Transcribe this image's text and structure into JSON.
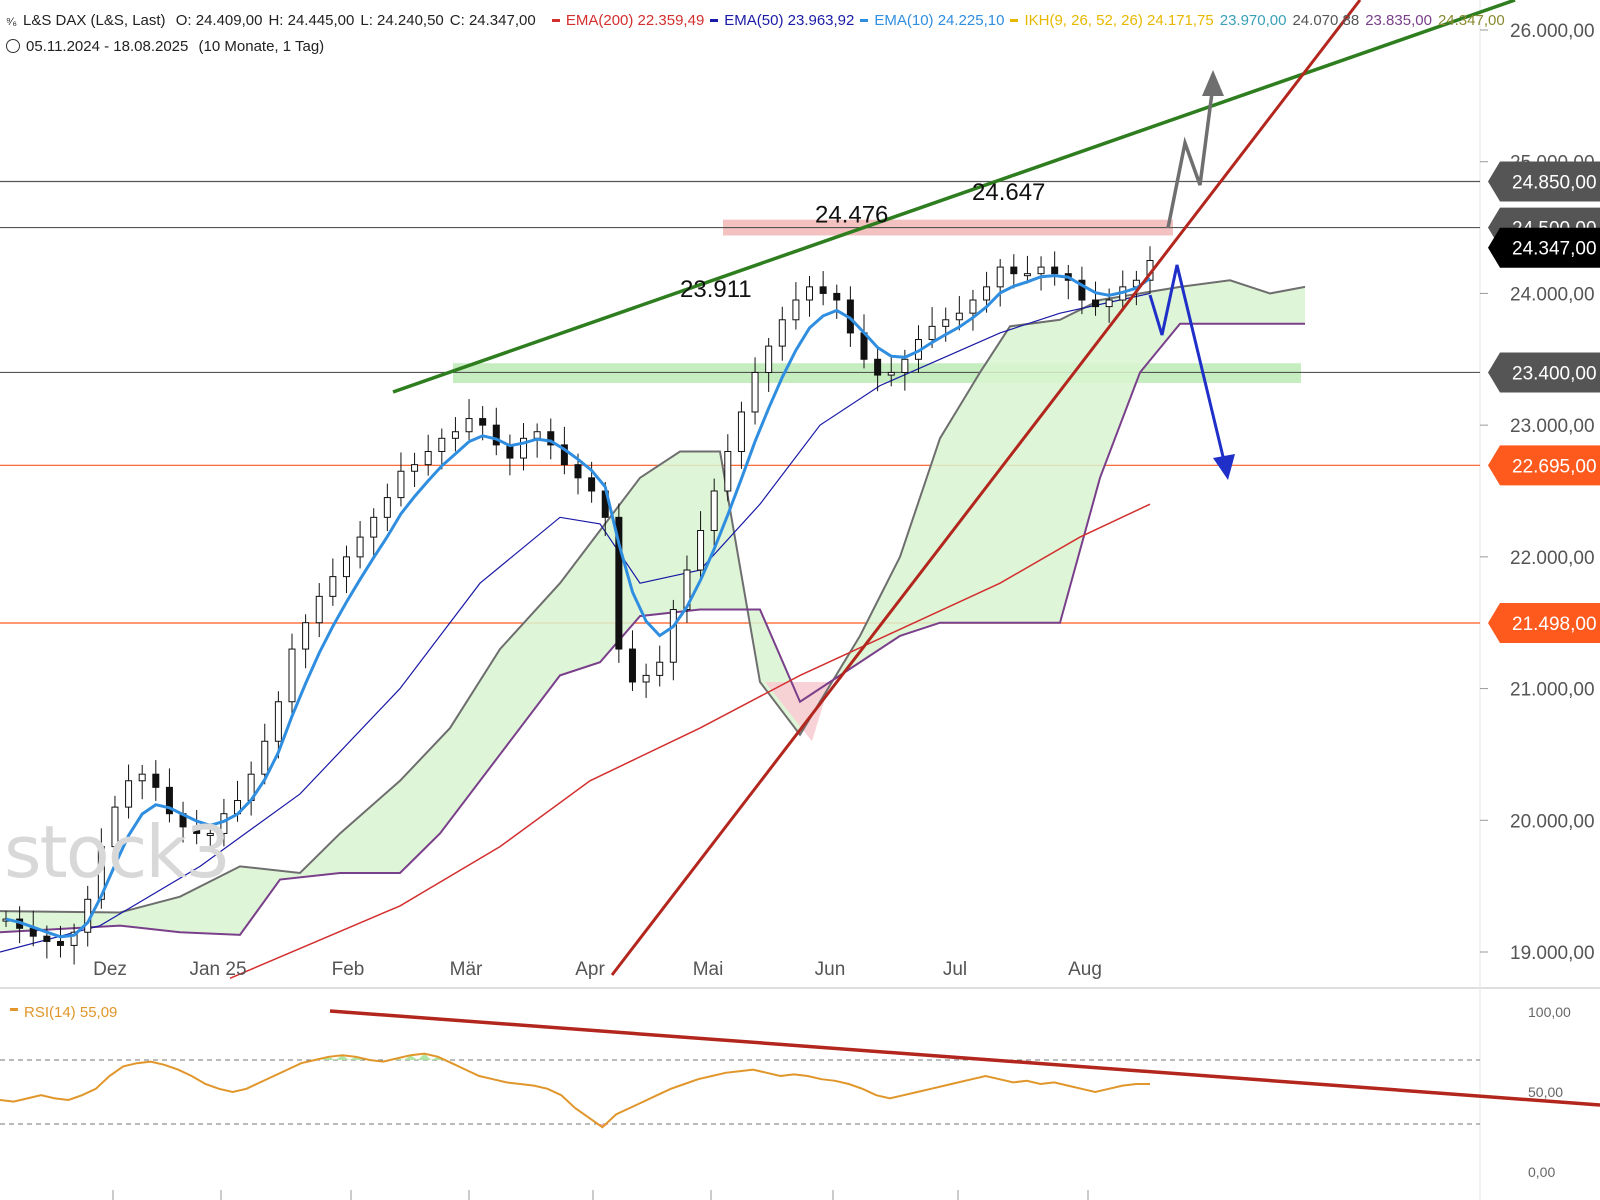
{
  "header": {
    "instrument": "L&S DAX (L&S, Last)",
    "ohlc": [
      {
        "label": "O:",
        "value": "24.409,00"
      },
      {
        "label": "H:",
        "value": "24.445,00"
      },
      {
        "label": "L:",
        "value": "24.240,50"
      },
      {
        "label": "C:",
        "value": "24.347,00"
      }
    ],
    "indicators": [
      {
        "label": "EMA(200)",
        "value": "22.359,49",
        "color": "#d32f2f"
      },
      {
        "label": "EMA(50)",
        "value": "23.963,92",
        "color": "#1a1aa6"
      },
      {
        "label": "EMA(10)",
        "value": "24.225,10",
        "color": "#2f8ee0"
      },
      {
        "label": "IKH(9, 26, 52, 26)",
        "value": "24.171,75",
        "color": "#e8b800"
      }
    ],
    "ikh_extra": [
      {
        "value": "23.970,00",
        "color": "#3aa0b8"
      },
      {
        "value": "24.070,88",
        "color": "#555555"
      },
      {
        "value": "23.835,00",
        "color": "#7a3f8a"
      },
      {
        "value": "24.347,00",
        "color": "#8a8a30"
      }
    ],
    "period": "05.11.2024 - 18.08.2025",
    "period_detail": "(10 Monate, 1 Tag)"
  },
  "watermark": "stock3",
  "chart_data": {
    "type": "candlestick",
    "title": "L&S DAX (L&S, Last)",
    "y_axis": {
      "ticks": [
        "26.000,00",
        "25.000,00",
        "24.000,00",
        "23.000,00",
        "22.000,00",
        "21.000,00",
        "20.000,00",
        "19.000,00"
      ],
      "tick_values": [
        26000,
        25000,
        24000,
        23000,
        22000,
        21000,
        20000,
        19000
      ],
      "ylim": [
        18700,
        26300
      ]
    },
    "x_axis": {
      "labels": [
        "Dez",
        "Jan 25",
        "Feb",
        "Mär",
        "Apr",
        "Mai",
        "Jun",
        "Jul",
        "Aug"
      ]
    },
    "price_tags": [
      {
        "label": "24.850,00",
        "value": 24850,
        "color": "#555555"
      },
      {
        "label": "24.500,00",
        "value": 24500,
        "color": "#555555"
      },
      {
        "label": "24.347,00",
        "value": 24347,
        "color": "#000000"
      },
      {
        "label": "23.400,00",
        "value": 23400,
        "color": "#555555"
      },
      {
        "label": "22.695,00",
        "value": 22695,
        "color": "#ff5a1e"
      },
      {
        "label": "21.498,00",
        "value": 21498,
        "color": "#ff5a1e"
      }
    ],
    "annotations": [
      {
        "text": "23.911",
        "value": 23911
      },
      {
        "text": "24.476",
        "value": 24476
      },
      {
        "text": "24.647",
        "value": 24647
      }
    ],
    "series_close_path": [
      19250,
      19180,
      19120,
      19080,
      19050,
      19150,
      19400,
      19800,
      20100,
      20300,
      20350,
      20250,
      20050,
      19950,
      19900,
      19900,
      20050,
      20150,
      20350,
      20600,
      20900,
      21300,
      21500,
      21700,
      21850,
      22000,
      22150,
      22300,
      22450,
      22650,
      22700,
      22800,
      22900,
      22950,
      23050,
      23000,
      22850,
      22750,
      22900,
      22950,
      22850,
      22700,
      22600,
      22500,
      22300,
      21300,
      21050,
      21100,
      21200,
      21600,
      21900,
      22200,
      22500,
      22800,
      23100,
      23400,
      23600,
      23800,
      23950,
      24050,
      24000,
      23950,
      23700,
      23500,
      23380,
      23400,
      23500,
      23650,
      23750,
      23800,
      23850,
      23950,
      24050,
      24200,
      24150,
      24150,
      24200,
      24150,
      24100,
      23950,
      23900,
      23950,
      24050,
      24100,
      24250
    ],
    "rsi": {
      "label": "RSI(14)",
      "value": "55,09",
      "ticks": [
        "100,00",
        "50,00",
        "0,00"
      ],
      "tick_values": [
        100,
        50,
        0
      ],
      "upper": 70,
      "lower": 30,
      "values": [
        45,
        44,
        46,
        48,
        46,
        45,
        48,
        52,
        60,
        66,
        68,
        69,
        67,
        64,
        60,
        55,
        52,
        50,
        52,
        56,
        60,
        64,
        68,
        70,
        72,
        73,
        72,
        70,
        69,
        71,
        73,
        74,
        72,
        68,
        64,
        60,
        58,
        56,
        55,
        54,
        52,
        48,
        40,
        34,
        28,
        36,
        40,
        44,
        48,
        52,
        55,
        58,
        60,
        62,
        63,
        64,
        62,
        60,
        61,
        60,
        58,
        57,
        55,
        52,
        48,
        46,
        48,
        50,
        52,
        54,
        56,
        58,
        60,
        58,
        56,
        57,
        55,
        56,
        54,
        52,
        50,
        52,
        54,
        55,
        55
      ]
    },
    "indicators_legend": [
      "EMA(200)",
      "EMA(50)",
      "EMA(10)",
      "IKH(9, 26, 52, 26)"
    ]
  },
  "colors": {
    "ema200": "#d32f2f",
    "ema50": "#1a1aa6",
    "ema10": "#2f8ee0",
    "cloud_green": "#d8f5d0",
    "cloud_red": "#f8d0d4",
    "trend_green": "#2e7d1e",
    "trend_red": "#b3261e",
    "arrow_grey": "#6f6f6f",
    "arrow_blue": "#1f2fc8",
    "rsi_line": "#e0962a",
    "resist_zone": "#f2b6b6",
    "support_zone": "#b6e8b0"
  }
}
